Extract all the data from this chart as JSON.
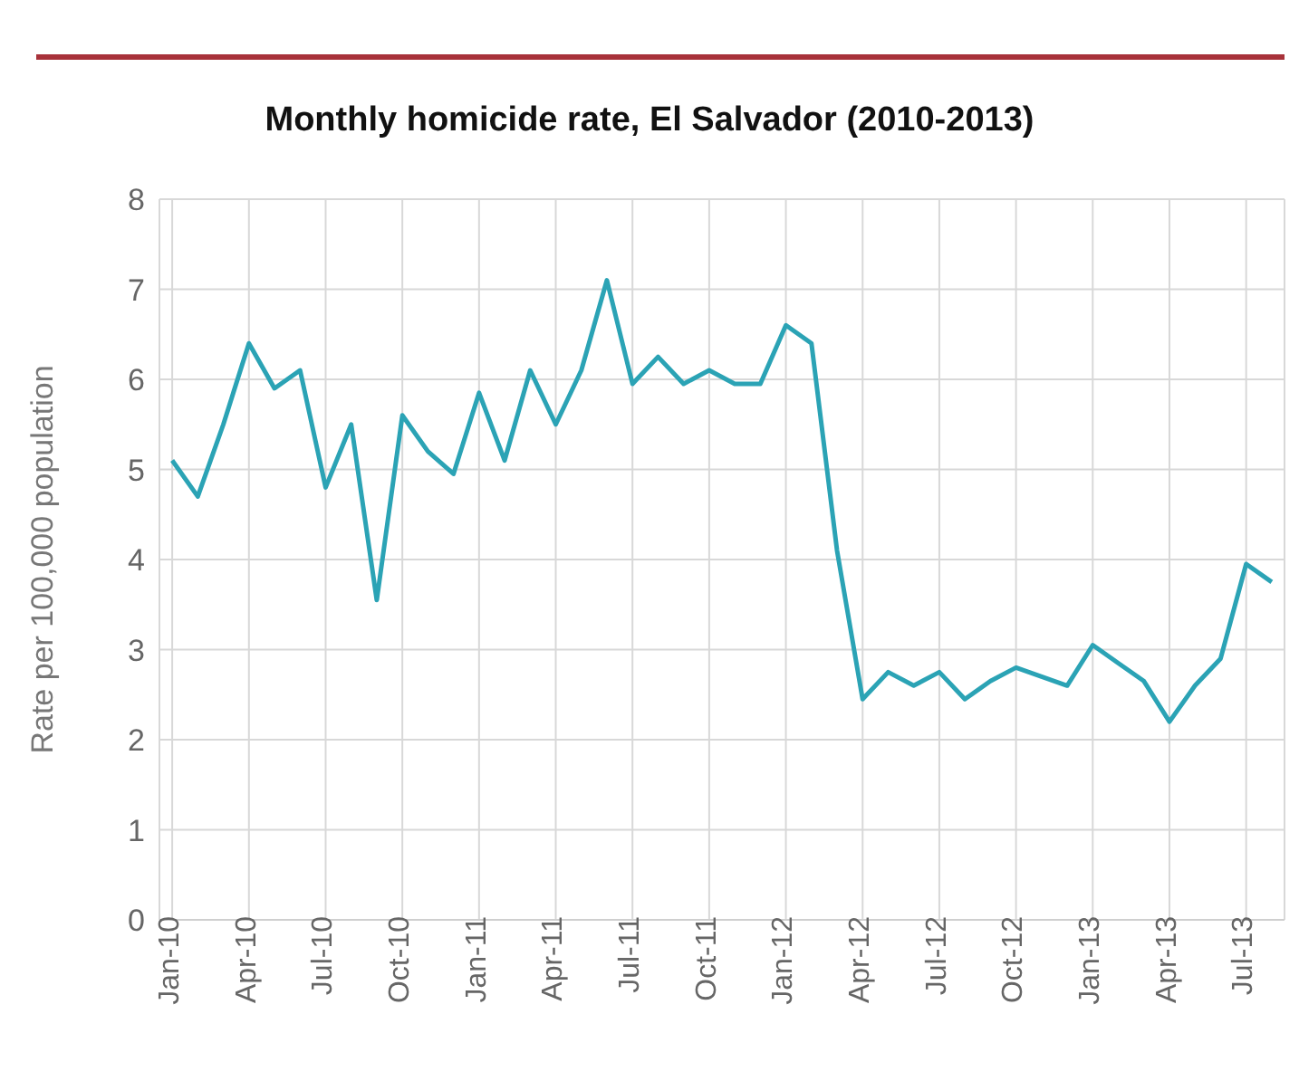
{
  "chart_data": {
    "type": "line",
    "title": "Monthly homicide rate, El Salvador (2010-2013)",
    "ylabel": "Rate per 100,000 population",
    "categories": [
      "Jan-10",
      null,
      null,
      "Apr-10",
      null,
      null,
      "Jul-10",
      null,
      null,
      "Oct-10",
      null,
      null,
      "Jan-11",
      null,
      null,
      "Apr-11",
      null,
      null,
      "Jul-11",
      null,
      null,
      "Oct-11",
      null,
      null,
      "Jan-12",
      null,
      null,
      "Apr-12",
      null,
      null,
      "Jul-12",
      null,
      null,
      "Oct-12",
      null,
      null,
      "Jan-13",
      null,
      null,
      "Apr-13",
      null,
      null,
      "Jul-13",
      null
    ],
    "series": [
      {
        "color": "#2ba3b5",
        "values": [
          5.1,
          4.7,
          5.5,
          6.4,
          5.9,
          6.1,
          4.8,
          5.5,
          3.55,
          5.6,
          5.2,
          4.95,
          5.85,
          5.1,
          6.1,
          5.5,
          6.1,
          7.1,
          5.95,
          6.25,
          5.95,
          6.1,
          5.95,
          5.95,
          6.6,
          6.4,
          4.1,
          2.45,
          2.75,
          2.6,
          2.75,
          2.45,
          2.65,
          2.8,
          2.7,
          2.6,
          3.05,
          2.85,
          2.65,
          2.2,
          2.6,
          2.9,
          3.95,
          3.75
        ]
      }
    ],
    "ylim": [
      0,
      8
    ],
    "yticks": [
      0,
      1,
      2,
      3,
      4,
      5,
      6,
      7,
      8
    ],
    "grid": true,
    "legend": false,
    "marker": "none",
    "line_style": "solid"
  }
}
